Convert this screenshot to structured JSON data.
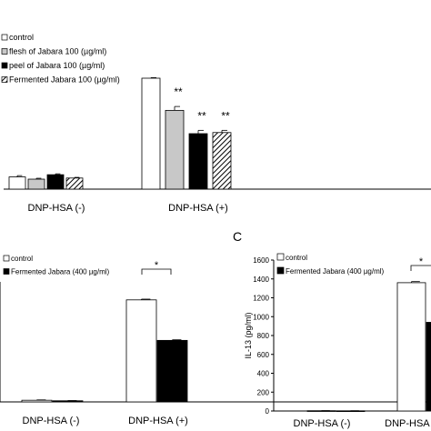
{
  "chart_data": [
    {
      "type": "bar",
      "panel_letter": "",
      "categories": [
        "DNP-HSA (-)",
        "DNP-HSA (+)"
      ],
      "ylabel": "",
      "ylim": [
        0,
        100
      ],
      "series": [
        {
          "name": "control",
          "values": [
            11,
            100
          ],
          "errors": [
            1.2,
            0.5
          ],
          "fill": "#ffffff",
          "pattern": "none"
        },
        {
          "name": "flesh of Jabara 100 (µg/ml)",
          "values": [
            9,
            71
          ],
          "errors": [
            0.8,
            3.5
          ],
          "fill": "#c8c8c8",
          "pattern": "none"
        },
        {
          "name": "peel of Jabara 100 (µg/ml)",
          "values": [
            13,
            50
          ],
          "errors": [
            0.8,
            3.0
          ],
          "fill": "#000000",
          "pattern": "none"
        },
        {
          "name": "Fermented Jabara 100 (µg/ml)",
          "values": [
            10,
            51
          ],
          "errors": [
            0.6,
            2.0
          ],
          "fill": "#ffffff",
          "pattern": "hatch"
        }
      ],
      "annotations": [
        {
          "category": 1,
          "series": 1,
          "text": "**"
        },
        {
          "category": 1,
          "series": 2,
          "text": "**"
        },
        {
          "category": 1,
          "series": 3,
          "text": "**"
        }
      ]
    },
    {
      "type": "bar",
      "panel_letter": "",
      "categories": [
        "DNP-HSA (-)",
        "DNP-HSA (+)"
      ],
      "ylabel": "",
      "ylim": [
        0,
        1600
      ],
      "series": [
        {
          "name": "control",
          "values": [
            22,
            1360
          ],
          "errors": [
            5,
            10
          ],
          "fill": "#ffffff",
          "pattern": "none"
        },
        {
          "name": "Fermented Jabara (400 µg/ml)",
          "values": [
            15,
            820
          ],
          "errors": [
            3,
            8
          ],
          "fill": "#000000",
          "pattern": "none"
        }
      ],
      "significance": {
        "text": "*",
        "category": 1
      }
    },
    {
      "type": "bar",
      "panel_letter": "C",
      "categories": [
        "DNP-HSA (-)",
        "DNP-HSA (+)"
      ],
      "ylabel": "IL-13 (pg/ml)",
      "ylim": [
        0,
        1600
      ],
      "yticks": [
        "0",
        "200",
        "400",
        "600",
        "800",
        "1000",
        "1200",
        "1400",
        "1600"
      ],
      "series": [
        {
          "name": "control",
          "values": [
            3,
            1360
          ],
          "errors": [
            1,
            12
          ],
          "fill": "#ffffff",
          "pattern": "none"
        },
        {
          "name": "Fermented Jabara (400 µg/ml)",
          "values": [
            2,
            940
          ],
          "errors": [
            1,
            10
          ],
          "fill": "#000000",
          "pattern": "none"
        }
      ],
      "significance": {
        "text": "*",
        "category": 1
      }
    }
  ]
}
